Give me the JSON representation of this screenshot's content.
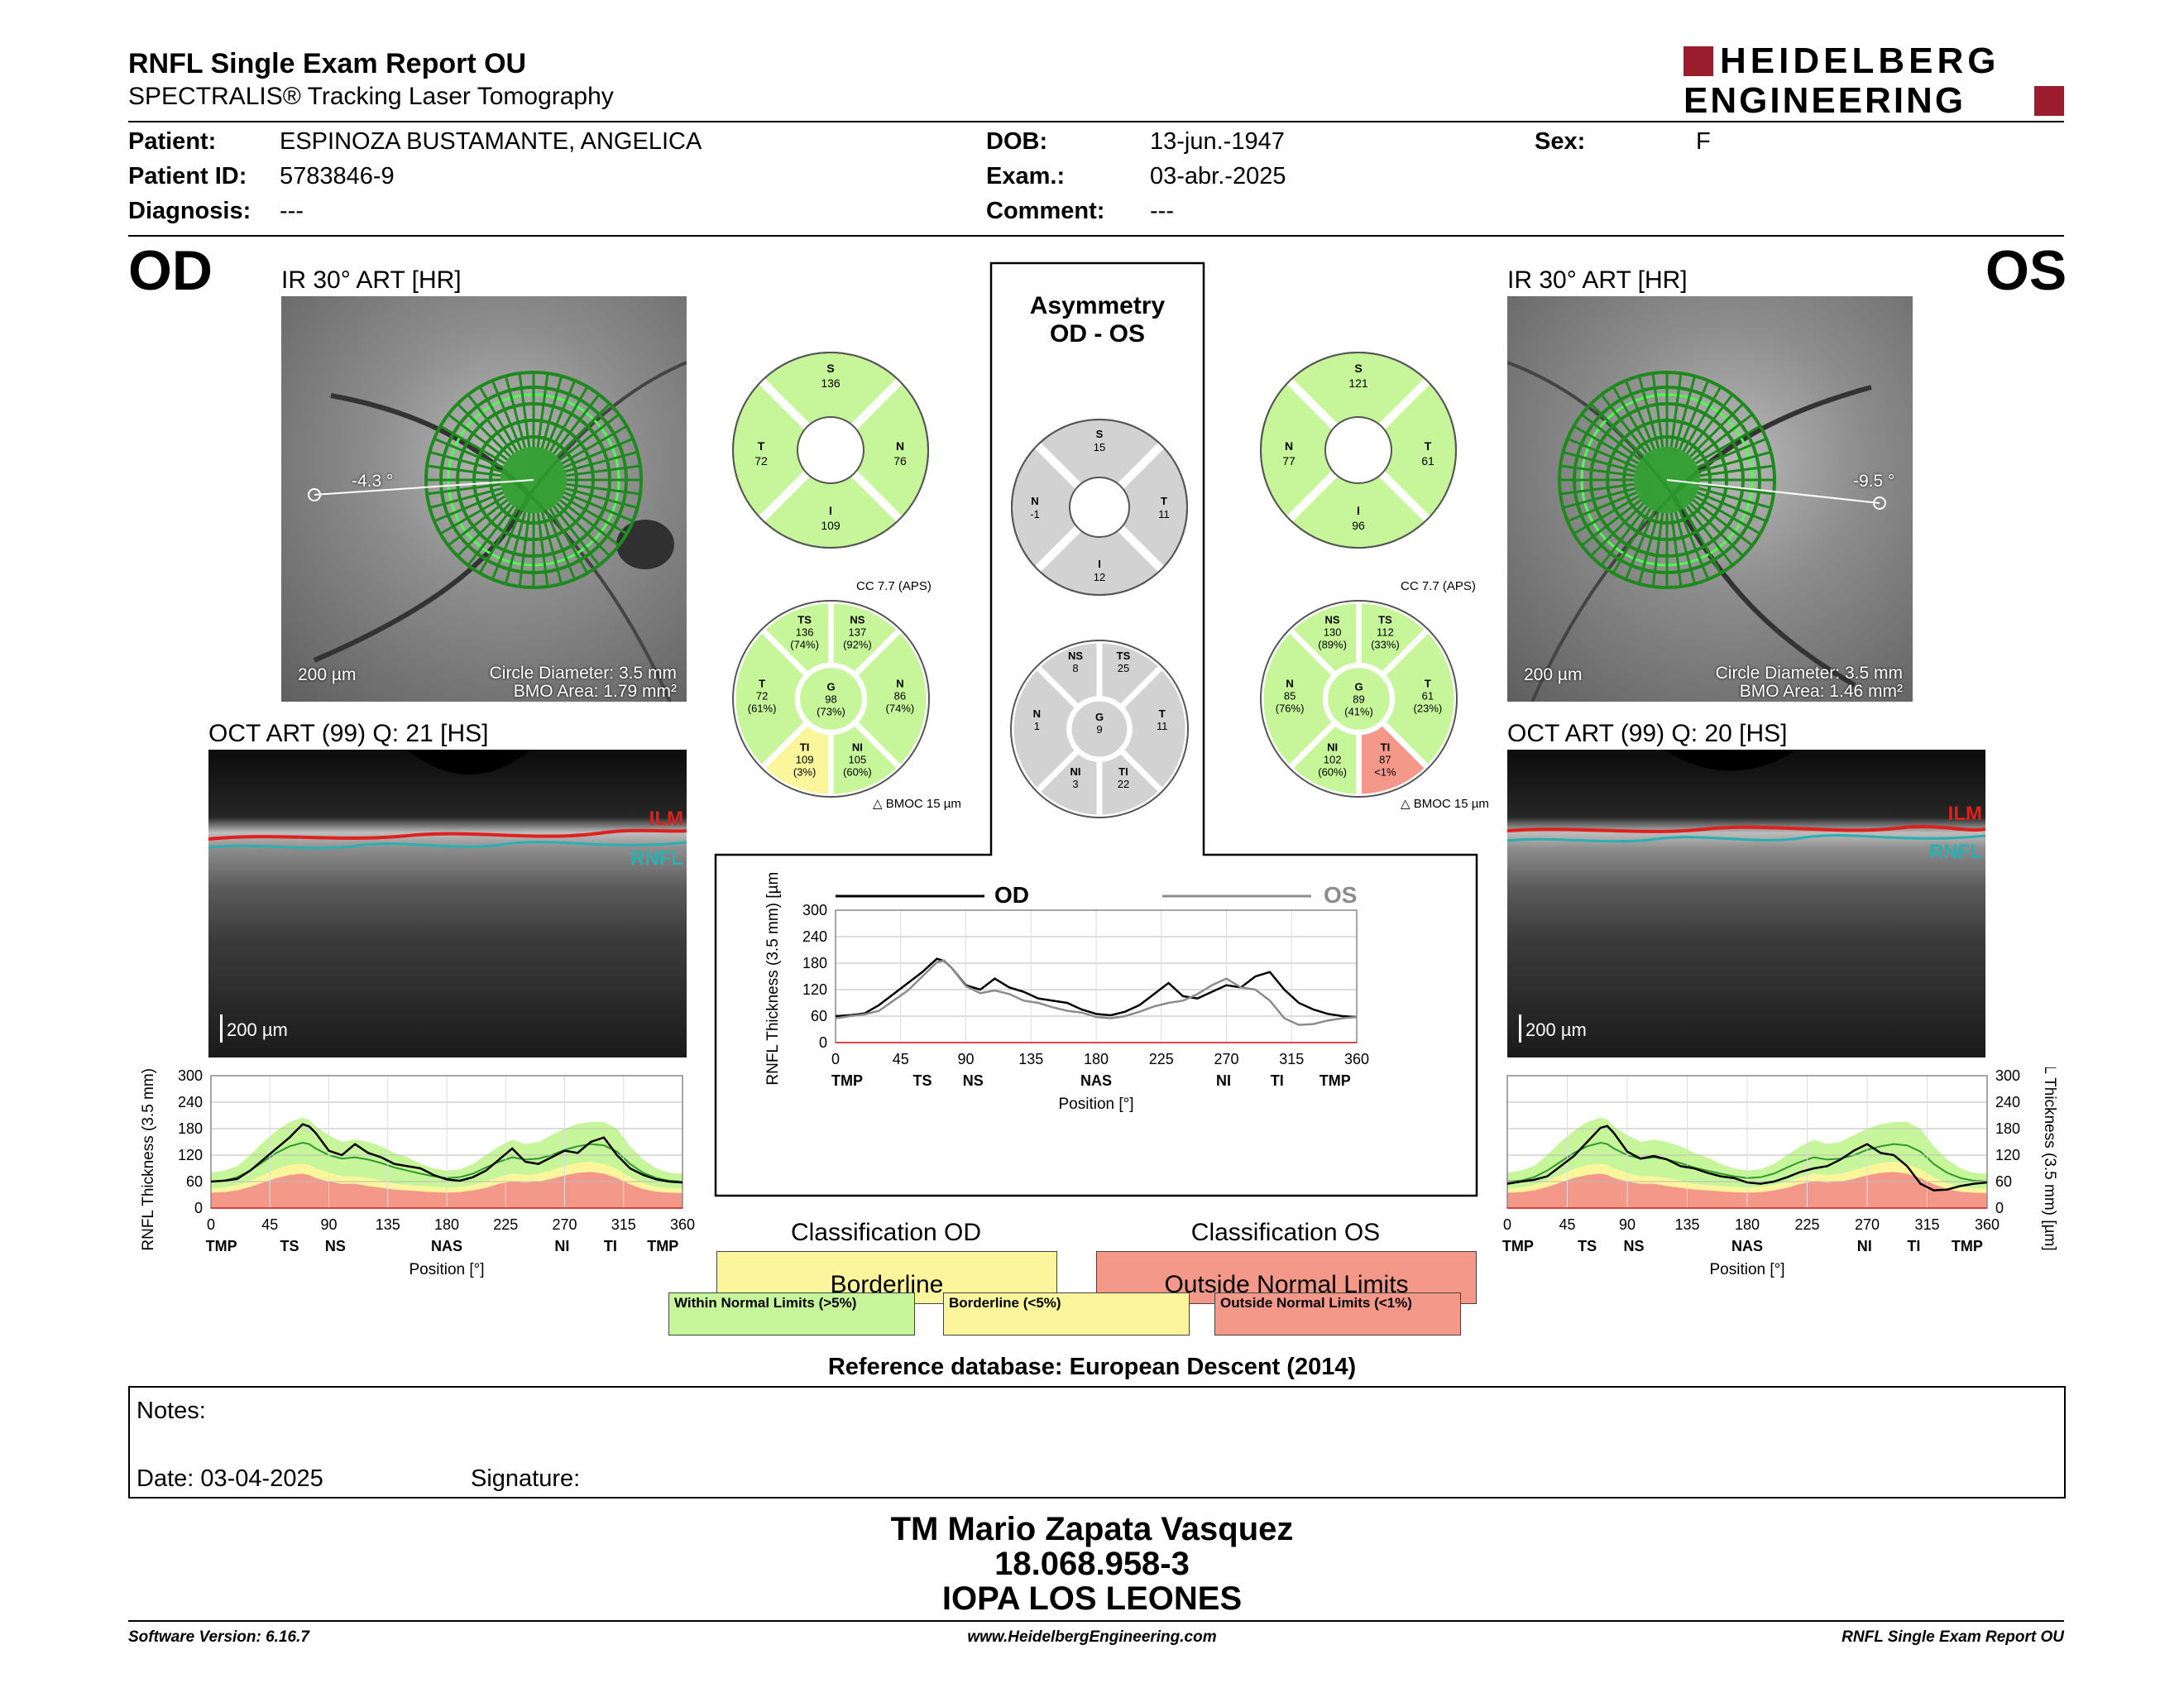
{
  "header": {
    "title": "RNFL Single Exam Report OU",
    "subtitle": "SPECTRALIS® Tracking Laser Tomography",
    "logo_line1": "HEIDELBERG",
    "logo_line2": "ENGINEERING",
    "brand_color": "#9b1c2c"
  },
  "patient": {
    "patient_label": "Patient:",
    "patient_value": "ESPINOZA BUSTAMANTE, ANGELICA",
    "id_label": "Patient ID:",
    "id_value": "5783846-9",
    "diagnosis_label": "Diagnosis:",
    "diagnosis_value": "---",
    "dob_label": "DOB:",
    "dob_value": "13-jun.-1947",
    "exam_label": "Exam.:",
    "exam_value": "03-abr.-2025",
    "comment_label": "Comment:",
    "comment_value": "---",
    "sex_label": "Sex:",
    "sex_value": "F"
  },
  "od": {
    "eye": "OD",
    "ir_caption": "IR 30° ART [HR]",
    "angle": "-4.3 °",
    "scale": "200 µm",
    "circle_diameter": "Circle Diameter: 3.5 mm",
    "bmo_area": "BMO Area: 1.79 mm²",
    "oct_caption": "OCT ART (99) Q: 21 [HS]",
    "oct_scale": "200 µm",
    "ilm": "ILM",
    "rnfl": "RNFL"
  },
  "os": {
    "eye": "OS",
    "ir_caption": "IR 30° ART [HR]",
    "angle": "-9.5 °",
    "scale": "200 µm",
    "circle_diameter": "Circle Diameter: 3.5 mm",
    "bmo_area": "BMO Area: 1.46 mm²",
    "oct_caption": "OCT ART (99) Q: 20 [HS]",
    "oct_scale": "200 µm",
    "ilm": "ILM",
    "rnfl": "RNFL"
  },
  "sectors": {
    "od_quad": {
      "S": "136",
      "T": "72",
      "N": "76",
      "I": "109",
      "S_lbl": "S",
      "T_lbl": "T",
      "N_lbl": "N",
      "I_lbl": "I"
    },
    "os_quad": {
      "S": "121",
      "N": "77",
      "T": "61",
      "I": "96",
      "S_lbl": "S",
      "N_lbl": "N",
      "T_lbl": "T",
      "I_lbl": "I"
    },
    "asym_quad": {
      "S": "15",
      "N": "-1",
      "T": "11",
      "I": "12",
      "S_lbl": "S",
      "N_lbl": "N",
      "T_lbl": "T",
      "I_lbl": "I"
    },
    "od_six": {
      "TS": "136",
      "TS_p": "(74%)",
      "NS": "137",
      "NS_p": "(92%)",
      "T": "72",
      "T_p": "(61%)",
      "G": "98",
      "G_p": "(73%)",
      "N": "86",
      "N_p": "(74%)",
      "TI": "109",
      "TI_p": "(3%)",
      "NI": "105",
      "NI_p": "(60%)",
      "cc": "CC 7.7 (APS)",
      "bmoc": "BMOC 15 µm"
    },
    "os_six": {
      "NS": "130",
      "NS_p": "(89%)",
      "TS": "112",
      "TS_p": "(33%)",
      "N": "85",
      "N_p": "(76%)",
      "G": "89",
      "G_p": "(41%)",
      "T": "61",
      "T_p": "(23%)",
      "NI": "102",
      "NI_p": "(60%)",
      "TI": "87",
      "TI_p": "<1%",
      "cc": "CC 7.7 (APS)",
      "bmoc": "BMOC 15 µm"
    },
    "asym_six": {
      "NS": "8",
      "TS": "25",
      "N": "1",
      "G": "9",
      "T": "11",
      "NI": "3",
      "TI": "22"
    },
    "colors": {
      "green": "#c6f59a",
      "yellow": "#fbf59b",
      "red": "#f4998a",
      "gray": "#d2d2d2"
    }
  },
  "asymmetry": {
    "title1": "Asymmetry",
    "title2": "OD - OS"
  },
  "chart_data": [
    {
      "type": "line",
      "id": "od_profile",
      "x": [
        0,
        10,
        20,
        30,
        40,
        50,
        60,
        70,
        75,
        80,
        90,
        100,
        110,
        120,
        130,
        140,
        150,
        160,
        170,
        180,
        190,
        200,
        210,
        220,
        230,
        240,
        250,
        260,
        270,
        280,
        290,
        300,
        310,
        320,
        330,
        340,
        350,
        360
      ],
      "series": [
        {
          "values": [
            60,
            62,
            66,
            85,
            110,
            135,
            160,
            190,
            185,
            170,
            130,
            120,
            145,
            125,
            115,
            100,
            95,
            90,
            75,
            65,
            62,
            70,
            85,
            110,
            135,
            105,
            100,
            115,
            130,
            125,
            150,
            160,
            120,
            90,
            75,
            65,
            60,
            58
          ]
        }
      ],
      "normal_upper": [
        80,
        85,
        95,
        120,
        150,
        175,
        195,
        205,
        200,
        185,
        165,
        150,
        155,
        150,
        140,
        125,
        115,
        100,
        90,
        85,
        88,
        100,
        120,
        140,
        155,
        145,
        150,
        165,
        180,
        190,
        195,
        195,
        180,
        140,
        110,
        90,
        80,
        78
      ],
      "normal_mid": [
        60,
        62,
        70,
        85,
        105,
        125,
        140,
        148,
        145,
        135,
        120,
        112,
        115,
        110,
        102,
        92,
        85,
        78,
        72,
        68,
        70,
        78,
        92,
        105,
        115,
        110,
        112,
        120,
        132,
        140,
        145,
        142,
        128,
        100,
        80,
        68,
        62,
        60
      ],
      "normal_borderline": [
        45,
        46,
        52,
        62,
        75,
        88,
        98,
        100,
        98,
        90,
        80,
        72,
        72,
        68,
        62,
        55,
        52,
        50,
        48,
        46,
        48,
        52,
        60,
        70,
        78,
        75,
        78,
        85,
        95,
        102,
        105,
        100,
        88,
        70,
        56,
        48,
        45,
        44
      ],
      "normal_lower": [
        35,
        36,
        40,
        48,
        58,
        68,
        75,
        78,
        75,
        68,
        60,
        55,
        55,
        50,
        46,
        42,
        40,
        38,
        36,
        35,
        36,
        40,
        46,
        55,
        60,
        58,
        60,
        66,
        74,
        80,
        82,
        78,
        68,
        54,
        43,
        37,
        35,
        34
      ],
      "xticks": [
        "0",
        "45",
        "90",
        "135",
        "180",
        "225",
        "270",
        "315",
        "360"
      ],
      "yticks": [
        "0",
        "60",
        "120",
        "180",
        "240",
        "300"
      ],
      "xcats": [
        "TMP",
        "TS",
        "NS",
        "NAS",
        "NI",
        "TI",
        "TMP"
      ],
      "xlabel": "Position [°]",
      "ylabel": "RNFL Thickness (3.5 mm) [µm]",
      "ylim": [
        0,
        300
      ]
    },
    {
      "type": "line",
      "id": "os_profile",
      "x": [
        0,
        10,
        20,
        30,
        40,
        50,
        60,
        70,
        75,
        80,
        90,
        100,
        110,
        120,
        130,
        140,
        150,
        160,
        170,
        180,
        190,
        200,
        210,
        220,
        230,
        240,
        250,
        260,
        270,
        280,
        290,
        300,
        310,
        320,
        330,
        340,
        350,
        360
      ],
      "series": [
        {
          "values": [
            55,
            60,
            64,
            72,
            95,
            118,
            150,
            182,
            186,
            170,
            128,
            112,
            118,
            110,
            95,
            90,
            80,
            72,
            68,
            58,
            55,
            60,
            70,
            82,
            90,
            95,
            110,
            130,
            145,
            125,
            120,
            95,
            55,
            40,
            42,
            50,
            55,
            58
          ]
        }
      ],
      "normal_upper": [
        80,
        85,
        95,
        120,
        150,
        175,
        195,
        205,
        200,
        185,
        165,
        150,
        155,
        150,
        140,
        125,
        115,
        100,
        90,
        85,
        88,
        100,
        120,
        140,
        155,
        145,
        150,
        165,
        180,
        190,
        195,
        195,
        180,
        140,
        110,
        90,
        80,
        78
      ],
      "normal_mid": [
        60,
        62,
        70,
        85,
        105,
        125,
        140,
        148,
        145,
        135,
        120,
        112,
        115,
        110,
        102,
        92,
        85,
        78,
        72,
        68,
        70,
        78,
        92,
        105,
        115,
        110,
        112,
        120,
        132,
        140,
        145,
        142,
        128,
        100,
        80,
        68,
        62,
        60
      ],
      "normal_borderline": [
        45,
        46,
        52,
        62,
        75,
        88,
        98,
        100,
        98,
        90,
        80,
        72,
        72,
        68,
        62,
        55,
        52,
        50,
        48,
        46,
        48,
        52,
        60,
        70,
        78,
        75,
        78,
        85,
        95,
        102,
        105,
        100,
        88,
        70,
        56,
        48,
        45,
        44
      ],
      "normal_lower": [
        35,
        36,
        40,
        48,
        58,
        68,
        75,
        78,
        75,
        68,
        60,
        55,
        55,
        50,
        46,
        42,
        40,
        38,
        36,
        35,
        36,
        40,
        46,
        55,
        60,
        58,
        60,
        66,
        74,
        80,
        82,
        78,
        68,
        54,
        43,
        37,
        35,
        34
      ],
      "xticks": [
        "0",
        "45",
        "90",
        "135",
        "180",
        "225",
        "270",
        "315",
        "360"
      ],
      "yticks": [
        "0",
        "60",
        "120",
        "180",
        "240",
        "300"
      ],
      "xcats": [
        "TMP",
        "TS",
        "NS",
        "NAS",
        "NI",
        "TI",
        "TMP"
      ],
      "xlabel": "Position [°]",
      "ylabel": "RNFL Thickness (3.5 mm) [µm]",
      "ylim": [
        0,
        300
      ]
    },
    {
      "type": "line",
      "id": "asymmetry_profile",
      "x": [
        0,
        10,
        20,
        30,
        40,
        50,
        60,
        70,
        75,
        80,
        90,
        100,
        110,
        120,
        130,
        140,
        150,
        160,
        170,
        180,
        190,
        200,
        210,
        220,
        230,
        240,
        250,
        260,
        270,
        280,
        290,
        300,
        310,
        320,
        330,
        340,
        350,
        360
      ],
      "series": [
        {
          "name": "OD",
          "color": "#000000",
          "values": [
            60,
            62,
            66,
            85,
            110,
            135,
            160,
            190,
            185,
            170,
            130,
            120,
            145,
            125,
            115,
            100,
            95,
            90,
            75,
            65,
            62,
            70,
            85,
            110,
            135,
            105,
            100,
            115,
            130,
            125,
            150,
            160,
            120,
            90,
            75,
            65,
            60,
            58
          ]
        },
        {
          "name": "OS",
          "color": "#8c8c8c",
          "values": [
            55,
            60,
            64,
            72,
            95,
            118,
            150,
            182,
            186,
            170,
            128,
            112,
            118,
            110,
            95,
            90,
            80,
            72,
            68,
            58,
            55,
            60,
            70,
            82,
            90,
            95,
            110,
            130,
            145,
            125,
            120,
            95,
            55,
            40,
            42,
            50,
            55,
            58
          ]
        }
      ],
      "xticks": [
        "0",
        "45",
        "90",
        "135",
        "180",
        "225",
        "270",
        "315",
        "360"
      ],
      "yticks": [
        "0",
        "60",
        "120",
        "180",
        "240",
        "300"
      ],
      "xcats": [
        "TMP",
        "TS",
        "NS",
        "NAS",
        "NI",
        "TI",
        "TMP"
      ],
      "xlabel": "Position [°]",
      "ylabel": "RNFL Thickness (3.5 mm) [µm]",
      "ylim": [
        0,
        300
      ]
    }
  ],
  "classification": {
    "od_label": "Classification OD",
    "od_value": "Borderline",
    "od_color": "#fbf59b",
    "os_label": "Classification OS",
    "os_value": "Outside Normal Limits",
    "os_color": "#f4998a",
    "legend_wnl": "Within Normal Limits (>5%)",
    "legend_bl": "Borderline (<5%)",
    "legend_onl": "Outside Normal Limits (<1%)"
  },
  "reference": "Reference database: European Descent (2014)",
  "notes": {
    "notes_label": "Notes:",
    "date_label": "Date: 03-04-2025",
    "signature_label": "Signature:"
  },
  "signature": {
    "name": "TM Mario Zapata Vasquez",
    "rut": "18.068.958-3",
    "institution": "IOPA LOS LEONES"
  },
  "footer": {
    "version": "Software Version: 6.16.7",
    "url": "www.HeidelbergEngineering.com",
    "report": "RNFL Single Exam Report OU"
  }
}
